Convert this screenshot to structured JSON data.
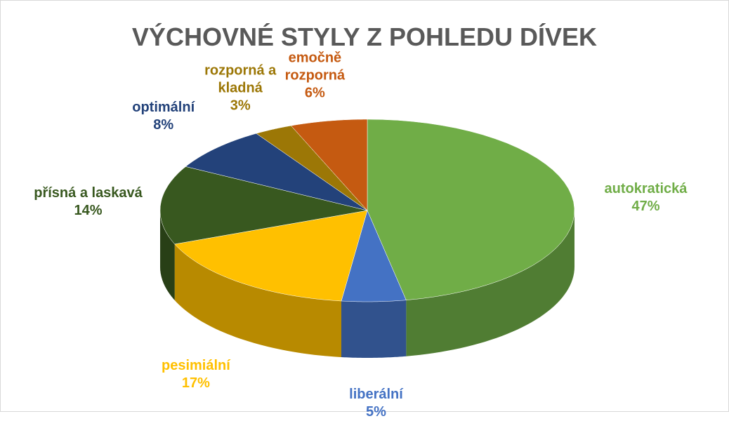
{
  "chart_data": {
    "type": "pie3d",
    "title": "VÝCHOVNÉ STYLY Z POHLEDU DÍVEK",
    "categories": [
      "autokratická",
      "liberální",
      "pesimiální",
      "přísná a laskavá",
      "optimální",
      "rozporná a kladná",
      "emočně rozporná"
    ],
    "values": [
      47,
      5,
      17,
      14,
      8,
      3,
      6
    ],
    "value_labels": [
      "47%",
      "5%",
      "17%",
      "14%",
      "8%",
      "3%",
      "6%"
    ],
    "colors": [
      "#70ad47",
      "#4472c4",
      "#ffc000",
      "#38581f",
      "#23427a",
      "#9c7706",
      "#c55a11"
    ]
  }
}
